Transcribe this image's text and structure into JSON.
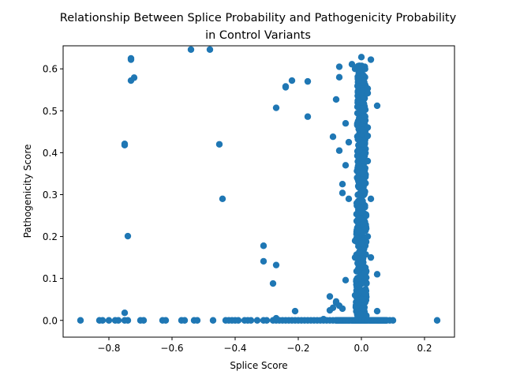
{
  "chart_data": {
    "type": "scatter",
    "title_lines": [
      "Relationship Between Splice Probability and Pathogenicity Probability",
      "in Control Variants"
    ],
    "xlabel": "Splice Score",
    "ylabel": "Pathogenicity Score",
    "xlim": [
      -0.945,
      0.295
    ],
    "ylim": [
      -0.04,
      0.655
    ],
    "xticks": [
      -0.8,
      -0.6,
      -0.4,
      -0.2,
      0.0,
      0.2
    ],
    "xtick_labels": [
      "−0.8",
      "−0.6",
      "−0.4",
      "−0.2",
      "0.0",
      "0.2"
    ],
    "yticks": [
      0.0,
      0.1,
      0.2,
      0.3,
      0.4,
      0.5,
      0.6
    ],
    "ytick_labels": [
      "0.0",
      "0.1",
      "0.2",
      "0.3",
      "0.4",
      "0.5",
      "0.6"
    ],
    "grid": false,
    "marker_color": "#1f77b4",
    "points": [
      [
        -0.89,
        0.0
      ],
      [
        -0.83,
        0.0
      ],
      [
        -0.82,
        0.0
      ],
      [
        -0.8,
        0.0
      ],
      [
        -0.78,
        0.0
      ],
      [
        -0.77,
        0.0
      ],
      [
        -0.75,
        0.0
      ],
      [
        -0.74,
        0.0
      ],
      [
        -0.7,
        0.0
      ],
      [
        -0.69,
        0.0
      ],
      [
        -0.63,
        0.0
      ],
      [
        -0.62,
        0.0
      ],
      [
        -0.57,
        0.0
      ],
      [
        -0.56,
        0.0
      ],
      [
        -0.53,
        0.0
      ],
      [
        -0.52,
        0.0
      ],
      [
        -0.47,
        0.0
      ],
      [
        -0.43,
        0.0
      ],
      [
        -0.42,
        0.0
      ],
      [
        -0.41,
        0.0
      ],
      [
        -0.4,
        0.0
      ],
      [
        -0.39,
        0.0
      ],
      [
        -0.37,
        0.0
      ],
      [
        -0.36,
        0.0
      ],
      [
        -0.35,
        0.0
      ],
      [
        -0.33,
        0.0
      ],
      [
        -0.31,
        0.0
      ],
      [
        -0.3,
        0.0
      ],
      [
        -0.28,
        0.0
      ],
      [
        -0.27,
        0.0
      ],
      [
        -0.26,
        0.0
      ],
      [
        -0.25,
        0.0
      ],
      [
        -0.24,
        0.0
      ],
      [
        -0.23,
        0.0
      ],
      [
        -0.22,
        0.0
      ],
      [
        -0.21,
        0.0
      ],
      [
        -0.2,
        0.0
      ],
      [
        -0.19,
        0.0
      ],
      [
        -0.18,
        0.0
      ],
      [
        -0.17,
        0.0
      ],
      [
        -0.16,
        0.0
      ],
      [
        -0.15,
        0.0
      ],
      [
        -0.14,
        0.0
      ],
      [
        -0.13,
        0.0
      ],
      [
        -0.12,
        0.0
      ],
      [
        -0.11,
        0.0
      ],
      [
        -0.1,
        0.0
      ],
      [
        -0.09,
        0.0
      ],
      [
        -0.08,
        0.0
      ],
      [
        -0.07,
        0.0
      ],
      [
        -0.06,
        0.0
      ],
      [
        -0.05,
        0.0
      ],
      [
        -0.04,
        0.0
      ],
      [
        -0.03,
        0.0
      ],
      [
        -0.02,
        0.0
      ],
      [
        -0.01,
        0.0
      ],
      [
        0.0,
        0.0
      ],
      [
        0.01,
        0.0
      ],
      [
        0.02,
        0.0
      ],
      [
        0.03,
        0.0
      ],
      [
        0.04,
        0.0
      ],
      [
        0.05,
        0.0
      ],
      [
        0.06,
        0.0
      ],
      [
        0.07,
        0.0
      ],
      [
        0.08,
        0.0
      ],
      [
        0.09,
        0.0
      ],
      [
        0.1,
        0.0
      ],
      [
        0.24,
        0.0
      ],
      [
        -0.75,
        0.018
      ],
      [
        -0.27,
        0.003
      ],
      [
        -0.27,
        0.005
      ],
      [
        -0.21,
        0.022
      ],
      [
        -0.12,
        0.003
      ],
      [
        -0.1,
        0.024
      ],
      [
        -0.09,
        0.03
      ],
      [
        -0.08,
        0.042
      ],
      [
        -0.07,
        0.035
      ],
      [
        -0.06,
        0.028
      ],
      [
        -0.1,
        0.057
      ],
      [
        -0.08,
        0.045
      ],
      [
        0.05,
        0.022
      ],
      [
        0.05,
        0.11
      ],
      [
        0.03,
        0.15
      ],
      [
        0.02,
        0.2
      ],
      [
        0.03,
        0.29
      ],
      [
        -0.74,
        0.201
      ],
      [
        -0.75,
        0.418
      ],
      [
        -0.75,
        0.421
      ],
      [
        -0.73,
        0.572
      ],
      [
        -0.72,
        0.579
      ],
      [
        -0.73,
        0.622
      ],
      [
        -0.73,
        0.625
      ],
      [
        -0.54,
        0.646
      ],
      [
        -0.48,
        0.646
      ],
      [
        -0.45,
        0.42
      ],
      [
        -0.44,
        0.29
      ],
      [
        -0.31,
        0.178
      ],
      [
        -0.31,
        0.141
      ],
      [
        -0.27,
        0.132
      ],
      [
        -0.28,
        0.088
      ],
      [
        -0.27,
        0.507
      ],
      [
        -0.24,
        0.556
      ],
      [
        -0.24,
        0.558
      ],
      [
        -0.22,
        0.572
      ],
      [
        -0.17,
        0.57
      ],
      [
        -0.17,
        0.486
      ],
      [
        -0.09,
        0.438
      ],
      [
        -0.07,
        0.405
      ],
      [
        -0.08,
        0.527
      ],
      [
        -0.07,
        0.58
      ],
      [
        -0.07,
        0.605
      ],
      [
        -0.06,
        0.325
      ],
      [
        -0.06,
        0.304
      ],
      [
        -0.05,
        0.47
      ],
      [
        -0.05,
        0.37
      ],
      [
        -0.04,
        0.425
      ],
      [
        -0.04,
        0.29
      ],
      [
        -0.05,
        0.096
      ],
      [
        -0.03,
        0.611
      ],
      [
        -0.02,
        0.6
      ],
      [
        0.0,
        0.628
      ],
      [
        0.03,
        0.622
      ],
      [
        0.02,
        0.542
      ],
      [
        0.02,
        0.553
      ],
      [
        0.05,
        0.512
      ],
      [
        0.02,
        0.46
      ],
      [
        0.02,
        0.38
      ],
      [
        0.01,
        0.33
      ],
      [
        0.02,
        0.44
      ],
      [
        -0.02,
        0.19
      ],
      [
        -0.02,
        0.15
      ],
      [
        -0.01,
        0.1
      ],
      [
        -0.02,
        0.06
      ]
    ],
    "dense_band": {
      "x_center": 0.0,
      "x_spread": 0.018,
      "y_range": [
        0.0,
        0.61
      ],
      "count": 520
    }
  }
}
